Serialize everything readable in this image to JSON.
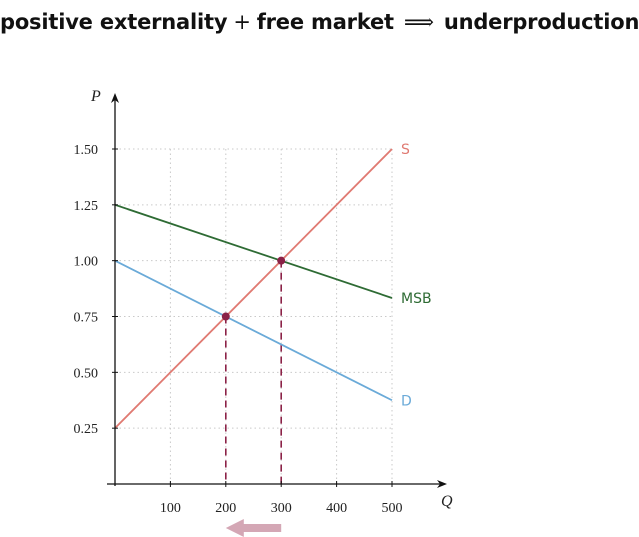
{
  "title": {
    "left": "positive externality",
    "plus": "+",
    "middle": "free market",
    "arrow": "⟹",
    "right": "underproduction"
  },
  "chart_data": {
    "type": "line",
    "xlabel": "Q",
    "ylabel": "P",
    "xlim": [
      0,
      500
    ],
    "ylim": [
      0,
      1.5
    ],
    "x_ticks": [
      100,
      200,
      300,
      400,
      500
    ],
    "y_ticks": [
      0.25,
      0.5,
      0.75,
      1.0,
      1.25,
      1.5
    ],
    "x_tick_labels": [
      "100",
      "200",
      "300",
      "400",
      "500"
    ],
    "y_tick_labels": [
      "0.25",
      "0.50",
      "0.75",
      "1.00",
      "1.25",
      "1.50"
    ],
    "grid": true,
    "series": [
      {
        "name": "S",
        "color": "#e07a72",
        "points": [
          [
            0,
            0.25
          ],
          [
            500,
            1.5
          ]
        ]
      },
      {
        "name": "MSB",
        "color": "#2e6b34",
        "points": [
          [
            0,
            1.25
          ],
          [
            500,
            0.833
          ]
        ]
      },
      {
        "name": "D",
        "color": "#6aaad8",
        "points": [
          [
            0,
            1.0
          ],
          [
            500,
            0.375
          ]
        ]
      }
    ],
    "equilibria": [
      {
        "x": 200,
        "y": 0.75
      },
      {
        "x": 300,
        "y": 1.0
      }
    ],
    "marker_color": "#8b2247",
    "shift_arrow": {
      "from": 300,
      "to": 200,
      "color": "#d4a7b5"
    }
  }
}
